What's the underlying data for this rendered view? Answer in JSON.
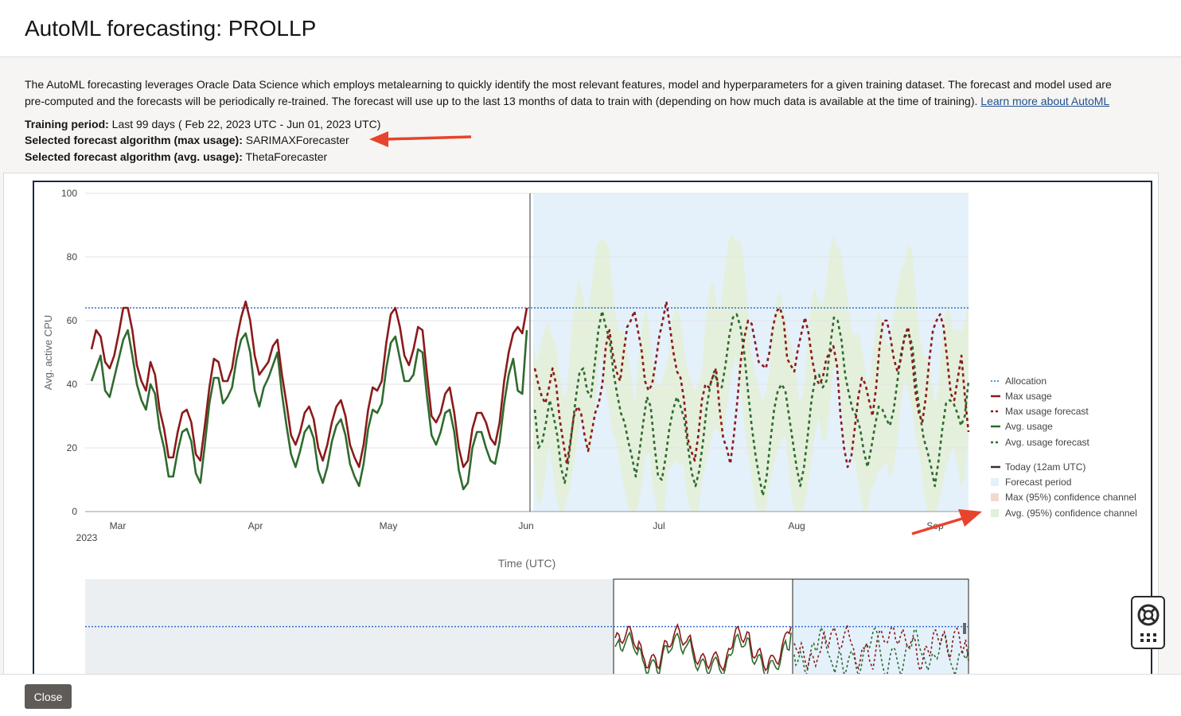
{
  "dialog": {
    "title": "AutoML forecasting: PROLLP",
    "description_line1": "The AutoML forecasting leverages Oracle Data Science which employs metalearning to quickly identify the most relevant features, model and hyperparameters for a given training dataset. The forecast and model used are",
    "description_line2": "pre-computed and the forecasts will be periodically re-trained. The forecast will use up to the last 13 months of data to train with (depending on how much data is available at the time of training).",
    "learn_more_link": "Learn more about AutoML",
    "training_period_label": "Training period:",
    "training_period_value": "Last 99 days ( Feb 22, 2023 UTC - Jun 01, 2023 UTC)",
    "max_algo_label": "Selected forecast algorithm (max usage):",
    "max_algo_value": "SARIMAXForecaster",
    "avg_algo_label": "Selected forecast algorithm (avg. usage):",
    "avg_algo_value": "ThetaForecaster",
    "close_label": "Close"
  },
  "chart_data": {
    "type": "line",
    "ylabel": "Avg. active CPU",
    "xlabel": "Time (UTC)",
    "ylim": [
      0,
      100
    ],
    "y_ticks": [
      "0",
      "20",
      "40",
      "60",
      "80",
      "100"
    ],
    "x_ticks": [
      "Mar",
      "Apr",
      "May",
      "Jun",
      "Jul",
      "Aug",
      "Sep"
    ],
    "year_label": "2023",
    "allocation": 64,
    "legend": [
      {
        "label": "Allocation",
        "style": "dotted",
        "color": "#2f6fd0"
      },
      {
        "label": "Max usage",
        "style": "solid",
        "color": "#8b1a1a"
      },
      {
        "label": "Max usage forecast",
        "style": "dashed",
        "color": "#8b1a1a"
      },
      {
        "label": "Avg. usage",
        "style": "solid",
        "color": "#2e6b2e"
      },
      {
        "label": "Avg. usage forecast",
        "style": "dashed",
        "color": "#2e6b2e"
      },
      {
        "label": "Today (12am UTC)",
        "style": "solid",
        "color": "#333333"
      },
      {
        "label": "Forecast period",
        "style": "box",
        "color": "#e4f1fb"
      },
      {
        "label": "Max (95%) confidence channel",
        "style": "box",
        "color": "#f1d9d0"
      },
      {
        "label": "Avg. (95%) confidence channel",
        "style": "box",
        "color": "#e3efd8"
      }
    ],
    "colors": {
      "max": "#8b1a1a",
      "avg": "#2e6b2e",
      "allocation": "#2f6fd0",
      "forecast_bg": "#e4f1fb",
      "confidence": "#e3efd8"
    },
    "max_usage": [
      51,
      57,
      55,
      47,
      45,
      49,
      56,
      64,
      64,
      57,
      46,
      41,
      38,
      47,
      43,
      32,
      26,
      17,
      17,
      25,
      31,
      32,
      28,
      18,
      16,
      27,
      39,
      48,
      47,
      41,
      41,
      45,
      54,
      61,
      66,
      60,
      49,
      43,
      45,
      47,
      52,
      54,
      43,
      34,
      24,
      21,
      25,
      31,
      33,
      29,
      20,
      16,
      21,
      28,
      33,
      35,
      30,
      21,
      17,
      14,
      21,
      32,
      39,
      38,
      41,
      53,
      62,
      64,
      58,
      49,
      46,
      51,
      58,
      57,
      43,
      30,
      28,
      31,
      37,
      39,
      31,
      20,
      14,
      16,
      26,
      31,
      31,
      28,
      23,
      21,
      28,
      41,
      50,
      56,
      58,
      56,
      64
    ],
    "avg_usage": [
      41,
      45,
      49,
      38,
      36,
      42,
      48,
      54,
      57,
      49,
      40,
      35,
      32,
      40,
      37,
      26,
      20,
      11,
      11,
      19,
      25,
      26,
      22,
      12,
      9,
      21,
      34,
      42,
      42,
      34,
      36,
      39,
      48,
      54,
      56,
      50,
      38,
      33,
      39,
      42,
      46,
      50,
      37,
      27,
      18,
      14,
      19,
      25,
      27,
      23,
      13,
      9,
      14,
      22,
      27,
      29,
      24,
      15,
      11,
      8,
      15,
      26,
      32,
      31,
      34,
      45,
      53,
      55,
      48,
      41,
      41,
      43,
      51,
      50,
      36,
      24,
      21,
      25,
      31,
      32,
      25,
      13,
      7,
      9,
      20,
      25,
      25,
      20,
      16,
      15,
      22,
      34,
      43,
      48,
      38,
      37,
      57
    ],
    "max_forecast": [
      45,
      40,
      36,
      34,
      39,
      45,
      40,
      29,
      22,
      15,
      22,
      30,
      33,
      31,
      24,
      19,
      25,
      31,
      34,
      40,
      52,
      57,
      49,
      44,
      41,
      50,
      58,
      60,
      63,
      57,
      51,
      41,
      38,
      40,
      47,
      55,
      60,
      66,
      58,
      50,
      44,
      42,
      35,
      23,
      19,
      16,
      24,
      35,
      40,
      39,
      42,
      45,
      32,
      23,
      20,
      15,
      24,
      35,
      48,
      55,
      60,
      59,
      53,
      47,
      46,
      45,
      50,
      58,
      63,
      64,
      60,
      48,
      46,
      44,
      51,
      56,
      61,
      56,
      48,
      42,
      40,
      42,
      48,
      50,
      52,
      46,
      30,
      20,
      14,
      17,
      26,
      36,
      42,
      40,
      35,
      30,
      39,
      52,
      60,
      60,
      55,
      48,
      44,
      48,
      55,
      58,
      50,
      38,
      31,
      28,
      36,
      48,
      57,
      60,
      62,
      58,
      48,
      37,
      35,
      42,
      49,
      36,
      25
    ],
    "avg_forecast": [
      32,
      20,
      22,
      28,
      35,
      30,
      24,
      14,
      9,
      16,
      26,
      36,
      44,
      45,
      38,
      36,
      46,
      57,
      63,
      58,
      54,
      44,
      37,
      31,
      28,
      22,
      17,
      11,
      19,
      28,
      36,
      33,
      21,
      11,
      10,
      17,
      26,
      32,
      36,
      33,
      29,
      20,
      12,
      8,
      13,
      22,
      33,
      40,
      44,
      40,
      39,
      46,
      55,
      61,
      62,
      58,
      50,
      38,
      27,
      18,
      11,
      5,
      11,
      22,
      32,
      38,
      40,
      38,
      30,
      22,
      14,
      8,
      14,
      24,
      35,
      42,
      43,
      39,
      41,
      52,
      61,
      60,
      54,
      43,
      37,
      32,
      30,
      26,
      19,
      14,
      20,
      27,
      33,
      32,
      29,
      27,
      32,
      41,
      50,
      55,
      56,
      52,
      40,
      31,
      23,
      19,
      14,
      8,
      16,
      26,
      34,
      35,
      34,
      31,
      27,
      30,
      41
    ]
  }
}
